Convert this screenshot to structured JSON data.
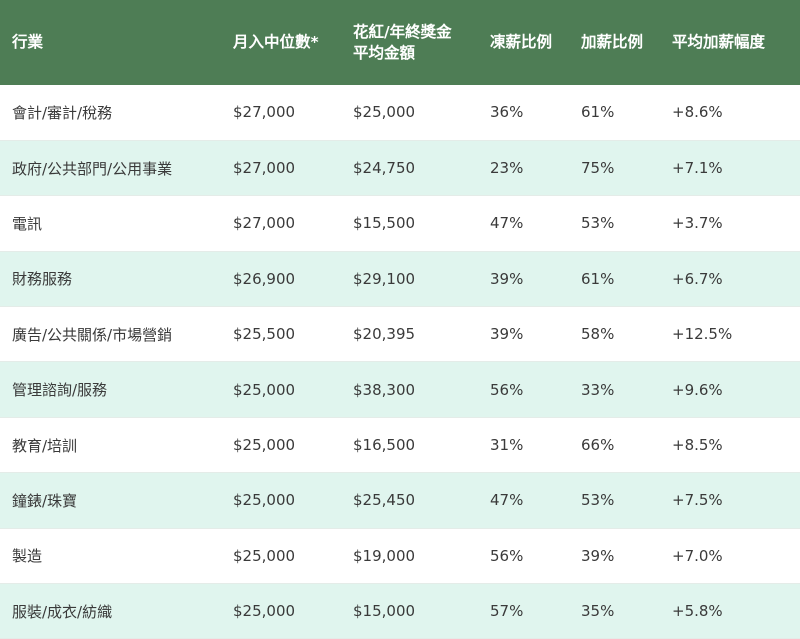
{
  "table": {
    "headers": [
      [
        "行業"
      ],
      [
        "月入中位數*"
      ],
      [
        "花紅/年終獎金",
        "平均金額"
      ],
      [
        "凍薪比例"
      ],
      [
        "加薪比例"
      ],
      [
        "平均加薪幅度"
      ]
    ],
    "rows": [
      [
        "會計/審計/稅務",
        "$27,000",
        "$25,000",
        "36%",
        "61%",
        "+8.6%"
      ],
      [
        "政府/公共部門/公用事業",
        "$27,000",
        "$24,750",
        "23%",
        "75%",
        "+7.1%"
      ],
      [
        "電訊",
        "$27,000",
        "$15,500",
        "47%",
        "53%",
        "+3.7%"
      ],
      [
        "財務服務",
        "$26,900",
        "$29,100",
        "39%",
        "61%",
        "+6.7%"
      ],
      [
        "廣告/公共關係/市場營銷",
        "$25,500",
        "$20,395",
        "39%",
        "58%",
        "+12.5%"
      ],
      [
        "管理諮詢/服務",
        "$25,000",
        "$38,300",
        "56%",
        "33%",
        "+9.6%"
      ],
      [
        "教育/培訓",
        "$25,000",
        "$16,500",
        "31%",
        "66%",
        "+8.5%"
      ],
      [
        "鐘錶/珠寶",
        "$25,000",
        "$25,450",
        "47%",
        "53%",
        "+7.5%"
      ],
      [
        "製造",
        "$25,000",
        "$19,000",
        "56%",
        "39%",
        "+7.0%"
      ],
      [
        "服裝/成衣/紡織",
        "$25,000",
        "$15,000",
        "57%",
        "35%",
        "+5.8%"
      ]
    ]
  },
  "colors": {
    "header_bg": "#4e7d55",
    "header_text": "#ffffff",
    "row_alt_bg": "#e0f5ee",
    "body_text": "#3a3a3a"
  }
}
